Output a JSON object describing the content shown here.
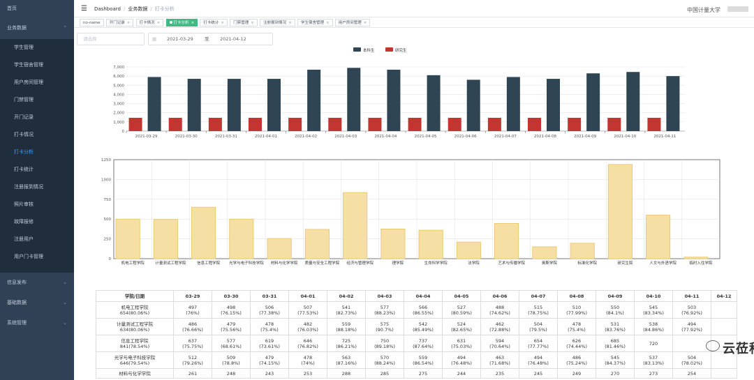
{
  "sidebar": {
    "items": [
      {
        "label": "首页"
      },
      {
        "label": "业务数据"
      },
      {
        "label": "学生管理"
      },
      {
        "label": "学生宿舍管理"
      },
      {
        "label": "用户房间管理"
      },
      {
        "label": "门禁管理"
      },
      {
        "label": "开门记录"
      },
      {
        "label": "打卡情况"
      },
      {
        "label": "打卡分析"
      },
      {
        "label": "打卡统计"
      },
      {
        "label": "注册报到情况"
      },
      {
        "label": "照片审核"
      },
      {
        "label": "故障报修"
      },
      {
        "label": "注册用户"
      },
      {
        "label": "用户门卡管理"
      },
      {
        "label": "信息发布"
      },
      {
        "label": "基础数据"
      },
      {
        "label": "系统管理"
      }
    ]
  },
  "navbar": {
    "breadcrumb": [
      "Dashboard",
      "业务数据",
      "打卡分析"
    ],
    "school": "中国计量大学"
  },
  "tags": [
    {
      "label": "no-name"
    },
    {
      "label": "开门记录"
    },
    {
      "label": "打卡情况"
    },
    {
      "label": "打卡分析"
    },
    {
      "label": "打卡统计"
    },
    {
      "label": "门禁管理"
    },
    {
      "label": "注册报到情况"
    },
    {
      "label": "学生宿舍管理"
    },
    {
      "label": "用户房间管理"
    }
  ],
  "filters": {
    "status_placeholder": "请选择",
    "date_start": "2021-03-29",
    "date_to": "至",
    "date_end": "2021-04-12"
  },
  "chart_data": [
    {
      "type": "bar",
      "categories": [
        "2021-03-29",
        "2021-03-30",
        "2021-03-31",
        "2021-04-01",
        "2021-04-02",
        "2021-04-03",
        "2021-04-04",
        "2021-04-05",
        "2021-04-06",
        "2021-04-07",
        "2021-04-08",
        "2021-04-09",
        "2021-04-10",
        "2021-04-11"
      ],
      "series": [
        {
          "name": "本科生",
          "color": "#2f4554",
          "values": [
            5900,
            5700,
            5700,
            5700,
            6700,
            6900,
            6700,
            6100,
            5600,
            5900,
            5700,
            6300,
            6450,
            6000
          ]
        },
        {
          "name": "研究生",
          "color": "#c23531",
          "values": [
            1450,
            1450,
            1450,
            1450,
            1450,
            1450,
            1450,
            1450,
            1450,
            1450,
            1450,
            1450,
            1450,
            1450
          ]
        }
      ],
      "ylim": [
        0,
        7000
      ],
      "yticks": [
        "0",
        "1,000",
        "2,000",
        "3,000",
        "4,000",
        "5,000",
        "6,000",
        "7,000"
      ],
      "legend": "top-center",
      "grid": true
    },
    {
      "type": "bar",
      "categories": [
        "机电工程学院",
        "计量测试工程学院",
        "信息工程学院",
        "光学与电子科技学院",
        "材料与化学学院",
        "质量与安全工程学院",
        "经济与管理学院",
        "理学院",
        "生命科学学院",
        "法学院",
        "艺术与传播学院",
        "奥斯学院",
        "标准化学院",
        "研究生院",
        "人文与外语学院",
        "临时入住学院"
      ],
      "values": [
        500,
        495,
        650,
        500,
        255,
        370,
        835,
        375,
        360,
        210,
        445,
        150,
        195,
        1190,
        550,
        20
      ],
      "ylim": [
        0,
        1250
      ],
      "yticks": [
        "0",
        "250",
        "500",
        "750",
        "1000",
        "1250"
      ],
      "color": "#f5dfa5",
      "border": "#e8c460",
      "grid": true
    }
  ],
  "table": {
    "headers": [
      "学院/日期",
      "03-29",
      "03-30",
      "03-31",
      "04-01",
      "04-02",
      "04-03",
      "04-04",
      "04-05",
      "04-06",
      "04-07",
      "04-08",
      "04-09",
      "04-10",
      "04-11",
      "04-12"
    ],
    "rows": [
      {
        "college": "机电工程学院",
        "sub": "654(80.06%)",
        "cells": [
          [
            "497",
            "(76%)"
          ],
          [
            "498",
            "(76.15%)"
          ],
          [
            "506",
            "(77.38%)"
          ],
          [
            "507",
            "(77.53%)"
          ],
          [
            "541",
            "(82.73%)"
          ],
          [
            "577",
            "(88.23%)"
          ],
          [
            "566",
            "(86.55%)"
          ],
          [
            "527",
            "(80.59%)"
          ],
          [
            "488",
            "(74.62%)"
          ],
          [
            "515",
            "(78.75%)"
          ],
          [
            "510",
            "(77.99%)"
          ],
          [
            "550",
            "(84.1%)"
          ],
          [
            "545",
            "(83.34%)"
          ],
          [
            "503",
            "(76.92%)"
          ],
          [
            "",
            ""
          ]
        ]
      },
      {
        "college": "计量测试工程学院",
        "sub": "634(80.06%)",
        "cells": [
          [
            "486",
            "(76.66%)"
          ],
          [
            "479",
            "(75.56%)"
          ],
          [
            "478",
            "(75.4%)"
          ],
          [
            "482",
            "(76.03%)"
          ],
          [
            "559",
            "(88.18%)"
          ],
          [
            "575",
            "(90.7%)"
          ],
          [
            "542",
            "(85.49%)"
          ],
          [
            "524",
            "(82.65%)"
          ],
          [
            "462",
            "(72.88%)"
          ],
          [
            "504",
            "(79.5%)"
          ],
          [
            "478",
            "(75.4%)"
          ],
          [
            "531",
            "(83.76%)"
          ],
          [
            "538",
            "(84.86%)"
          ],
          [
            "494",
            "(77.92%)"
          ],
          [
            "",
            ""
          ]
        ]
      },
      {
        "college": "信息工程学院",
        "sub": "841(78.54%)",
        "cells": [
          [
            "637",
            "(75.75%)"
          ],
          [
            "577",
            "(68.61%)"
          ],
          [
            "619",
            "(73.61%)"
          ],
          [
            "646",
            "(76.82%)"
          ],
          [
            "725",
            "(86.21%)"
          ],
          [
            "750",
            "(89.18%)"
          ],
          [
            "737",
            "(87.64%)"
          ],
          [
            "631",
            "(75.03%)"
          ],
          [
            "594",
            "(70.64%)"
          ],
          [
            "654",
            "(77.77%)"
          ],
          [
            "626",
            "(74.44%)"
          ],
          [
            "685",
            "(81.46%)"
          ],
          [
            "720",
            "",
            ""
          ],
          [
            "",
            ""
          ],
          [
            "",
            ""
          ]
        ]
      },
      {
        "college": "光学与电子科技学院",
        "sub": "646(79.54%)",
        "cells": [
          [
            "512",
            "(79.26%)"
          ],
          [
            "509",
            "(78.8%)"
          ],
          [
            "479",
            "(74.15%)"
          ],
          [
            "478",
            "(74%)"
          ],
          [
            "563",
            "(87.16%)"
          ],
          [
            "570",
            "(88.24%)"
          ],
          [
            "559",
            "(86.54%)"
          ],
          [
            "494",
            "(76.48%)"
          ],
          [
            "463",
            "(71.68%)"
          ],
          [
            "494",
            "(76.48%)"
          ],
          [
            "486",
            "(75.24%)"
          ],
          [
            "545",
            "(84.37%)"
          ],
          [
            "537",
            "(83.13%)"
          ],
          [
            "504",
            "(78.02%)"
          ],
          [
            "",
            ""
          ]
        ]
      },
      {
        "college": "材料与化学学院",
        "sub": "",
        "cells": [
          [
            "261",
            ""
          ],
          [
            "248",
            ""
          ],
          [
            "243",
            ""
          ],
          [
            "253",
            ""
          ],
          [
            "288",
            ""
          ],
          [
            "285",
            ""
          ],
          [
            "275",
            ""
          ],
          [
            "244",
            ""
          ],
          [
            "235",
            ""
          ],
          [
            "245",
            ""
          ],
          [
            "249",
            ""
          ],
          [
            "270",
            ""
          ],
          [
            "273",
            ""
          ],
          [
            "254",
            ""
          ],
          [
            "",
            ""
          ]
        ]
      }
    ]
  },
  "watermark": {
    "text": "云莅科技"
  }
}
